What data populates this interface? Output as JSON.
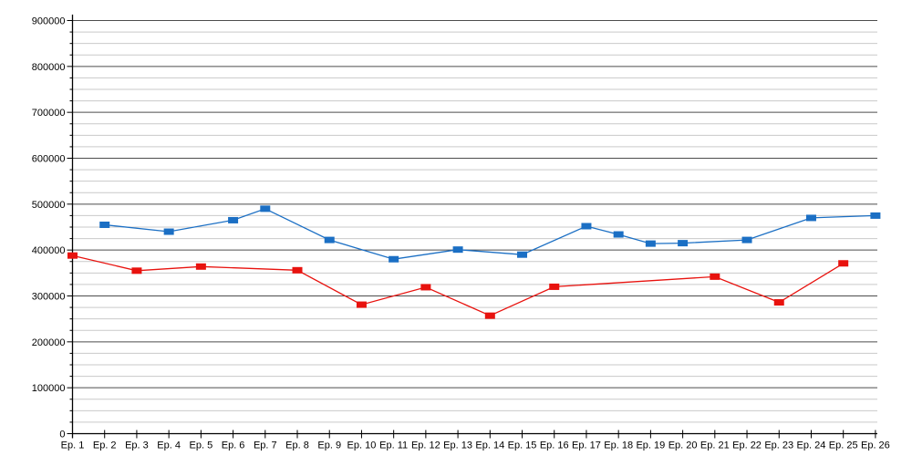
{
  "chart_data": {
    "type": "line",
    "title": "",
    "xlabel": "",
    "ylabel": "",
    "legend": "none",
    "grid": "horizontal major and minor lines",
    "marker": "square",
    "ylim": [
      0,
      900000
    ],
    "y_major_step": 100000,
    "y_minor_step": 25000,
    "y_tick_labels": [
      "0",
      "100000",
      "200000",
      "300000",
      "400000",
      "500000",
      "600000",
      "700000",
      "800000",
      "900000"
    ],
    "categories": [
      "Ep. 1",
      "Ep. 2",
      "Ep. 3",
      "Ep. 4",
      "Ep. 5",
      "Ep. 6",
      "Ep. 7",
      "Ep. 8",
      "Ep. 9",
      "Ep. 10",
      "Ep. 11",
      "Ep. 12",
      "Ep. 13",
      "Ep. 14",
      "Ep. 15",
      "Ep. 16",
      "Ep. 17",
      "Ep. 18",
      "Ep. 19",
      "Ep. 20",
      "Ep. 21",
      "Ep. 22",
      "Ep. 23",
      "Ep. 24",
      "Ep. 25",
      "Ep. 26"
    ],
    "series": [
      {
        "name": "blue",
        "color": "#1b6fc4",
        "values": [
          null,
          455000,
          null,
          440000,
          null,
          465000,
          490000,
          null,
          422000,
          null,
          380000,
          null,
          401000,
          null,
          390000,
          null,
          452000,
          434000,
          414000,
          415000,
          null,
          422000,
          null,
          470000,
          null,
          475000
        ]
      },
      {
        "name": "red",
        "color": "#e8120e",
        "values": [
          388000,
          null,
          355000,
          null,
          364000,
          null,
          null,
          356000,
          null,
          281000,
          null,
          319000,
          null,
          257000,
          null,
          320000,
          null,
          null,
          null,
          null,
          342000,
          null,
          286000,
          null,
          371000,
          null
        ]
      }
    ],
    "colors": {
      "background": "#ffffff",
      "axis": "#000000",
      "grid_major": "#4d4d4d",
      "grid_minor": "#c9c9c9",
      "tick_label": "#000000"
    }
  }
}
